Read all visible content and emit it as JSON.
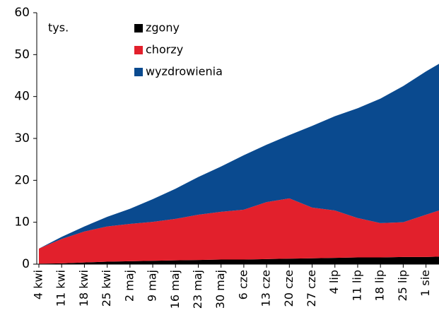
{
  "chart_data": {
    "type": "stacked_area",
    "y_label": "tys.",
    "x": [
      0,
      7,
      14,
      21,
      28,
      35,
      42,
      49,
      56,
      63,
      70,
      77,
      84,
      91,
      98,
      105,
      112,
      119,
      123
    ],
    "xlim": [
      0,
      123
    ],
    "xticks": [
      {
        "value": 0,
        "label": "4 kwi"
      },
      {
        "value": 7,
        "label": "11 kwi"
      },
      {
        "value": 14,
        "label": "18 kwi"
      },
      {
        "value": 21,
        "label": "25 kwi"
      },
      {
        "value": 28,
        "label": "2 maj"
      },
      {
        "value": 35,
        "label": "9 maj"
      },
      {
        "value": 42,
        "label": "16 maj"
      },
      {
        "value": 49,
        "label": "23 maj"
      },
      {
        "value": 56,
        "label": "30 maj"
      },
      {
        "value": 63,
        "label": "6 cze"
      },
      {
        "value": 70,
        "label": "13 cze"
      },
      {
        "value": 77,
        "label": "20 cze"
      },
      {
        "value": 84,
        "label": "27 cze"
      },
      {
        "value": 91,
        "label": "4 lip"
      },
      {
        "value": 98,
        "label": "11 lip"
      },
      {
        "value": 105,
        "label": "18 lip"
      },
      {
        "value": 112,
        "label": "25 lip"
      },
      {
        "value": 119,
        "label": "1 sie"
      }
    ],
    "ylim": [
      0,
      60
    ],
    "yticks": [
      0,
      10,
      20,
      30,
      40,
      50,
      60
    ],
    "series": [
      {
        "name": "zgony",
        "color": "#000000",
        "values": [
          0.1,
          0.2,
          0.4,
          0.6,
          0.7,
          0.8,
          0.9,
          1.0,
          1.1,
          1.1,
          1.2,
          1.3,
          1.4,
          1.5,
          1.6,
          1.6,
          1.7,
          1.7,
          1.8
        ]
      },
      {
        "name": "chorzy",
        "color": "#e2202c",
        "values": [
          3.6,
          5.8,
          7.4,
          8.4,
          8.9,
          9.3,
          9.9,
          10.8,
          11.4,
          11.9,
          13.6,
          14.4,
          12.1,
          11.3,
          9.4,
          8.2,
          8.3,
          10.1,
          11.0
        ]
      },
      {
        "name": "wyzdrowienia",
        "color": "#0a4a8f",
        "values": [
          0,
          0.5,
          1.2,
          2.3,
          3.6,
          5.4,
          7.2,
          9.0,
          10.8,
          13.0,
          13.7,
          15.1,
          19.5,
          22.5,
          26.2,
          29.7,
          32.5,
          34.2,
          35.0
        ]
      }
    ]
  }
}
